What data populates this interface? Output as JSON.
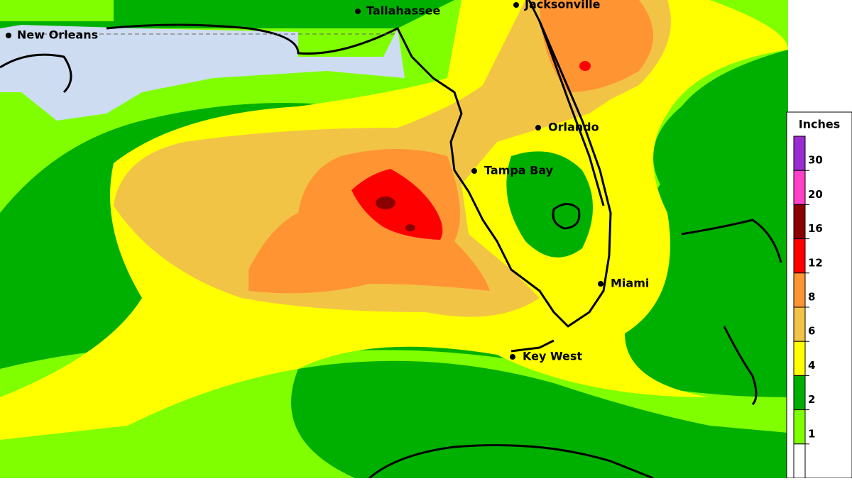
{
  "cities": [
    "Tallahassee",
    "New Orleans",
    "Jacksonville",
    "Orlando",
    "Tampa Bay",
    "Miami",
    "Key West"
  ],
  "legend": {
    "title": "Inches",
    "colors": [
      "#9a2bd0",
      "#ff40c8",
      "#8a0000",
      "#ff0000",
      "#ff9433",
      "#f2c446",
      "#ffff00",
      "#00b000",
      "#80ff00",
      "#ffffff"
    ],
    "labels": [
      "30",
      "20",
      "16",
      "12",
      "8",
      "6",
      "4",
      "2",
      "1"
    ]
  }
}
